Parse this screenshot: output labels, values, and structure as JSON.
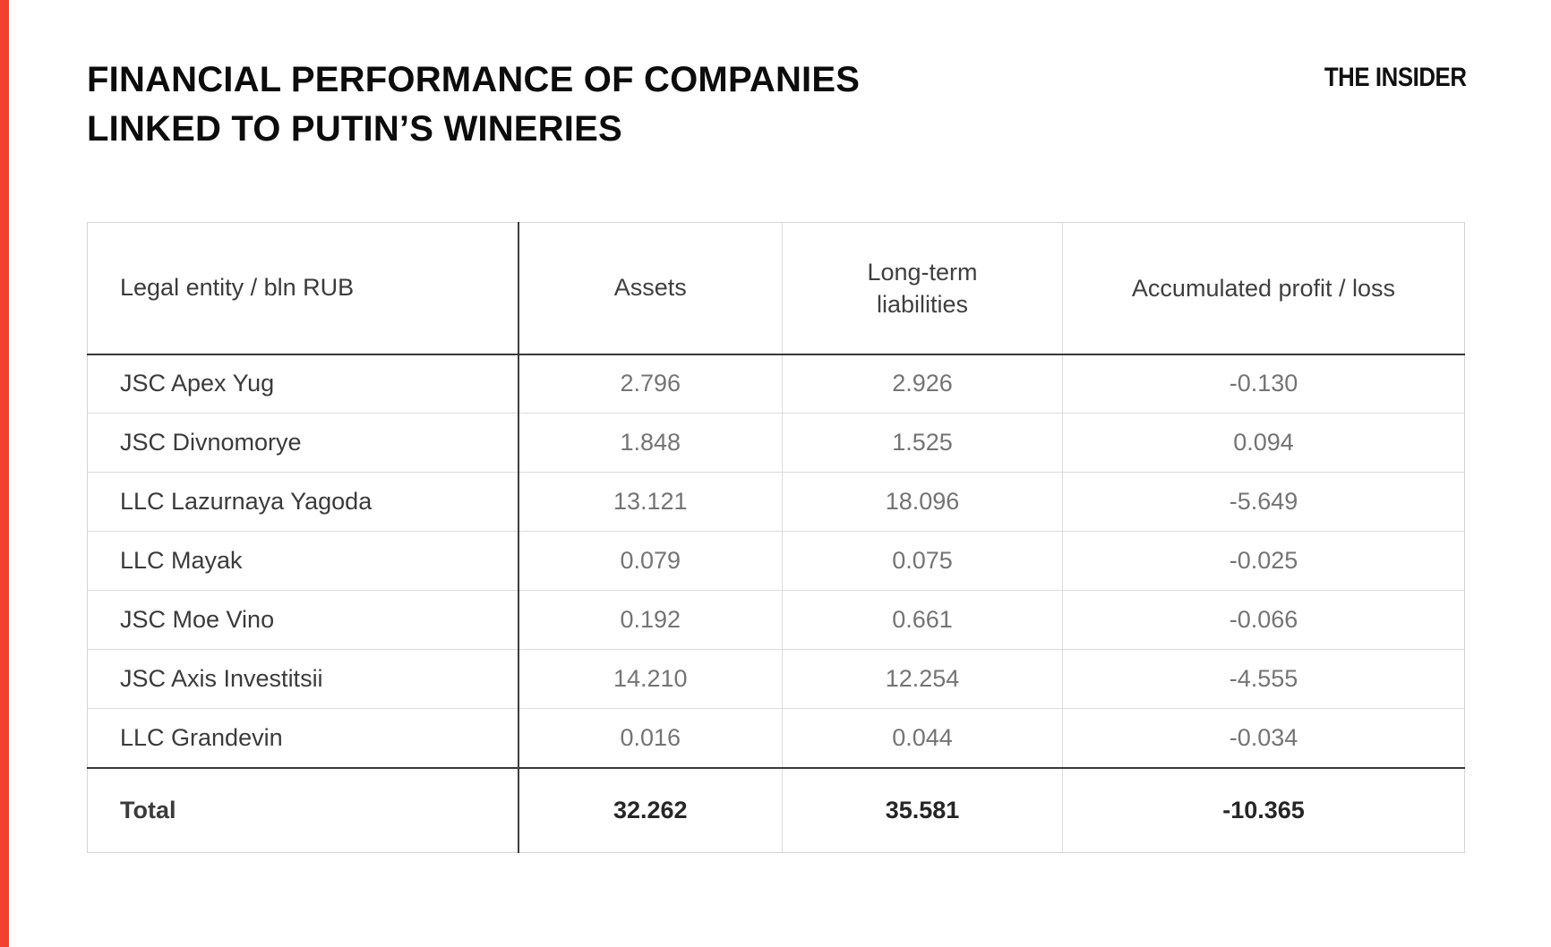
{
  "page": {
    "title_line1": "FINANCIAL PERFORMANCE OF COMPANIES",
    "title_line2": "LINKED TO PUTIN’S WINERIES",
    "logo": "THE INSIDER",
    "accent_color": "#f4402e"
  },
  "table": {
    "headers": {
      "entity": "Legal entity / bln RUB",
      "assets": "Assets",
      "liabilities": "Long-term liabilities",
      "profit": "Accumulated profit / loss"
    },
    "rows": [
      {
        "name": "JSC Apex Yug",
        "assets": "2.796",
        "liabilities": "2.926",
        "profit": "-0.130"
      },
      {
        "name": "JSC Divnomorye",
        "assets": "1.848",
        "liabilities": "1.525",
        "profit": "0.094"
      },
      {
        "name": "LLC Lazurnaya Yagoda",
        "assets": "13.121",
        "liabilities": "18.096",
        "profit": "-5.649"
      },
      {
        "name": "LLC Mayak",
        "assets": "0.079",
        "liabilities": "0.075",
        "profit": "-0.025"
      },
      {
        "name": "JSC Moe Vino",
        "assets": "0.192",
        "liabilities": "0.661",
        "profit": "-0.066"
      },
      {
        "name": "JSC Axis Investitsii",
        "assets": "14.210",
        "liabilities": "12.254",
        "profit": "-4.555"
      },
      {
        "name": "LLC Grandevin",
        "assets": "0.016",
        "liabilities": "0.044",
        "profit": "-0.034"
      }
    ],
    "total": {
      "name": "Total",
      "assets": "32.262",
      "liabilities": "35.581",
      "profit": "-10.365"
    }
  },
  "chart_data": {
    "type": "table",
    "title": "FINANCIAL PERFORMANCE OF COMPANIES LINKED TO PUTIN’S WINERIES",
    "unit": "bln RUB",
    "columns": [
      "Legal entity / bln RUB",
      "Assets",
      "Long-term liabilities",
      "Accumulated profit / loss"
    ],
    "rows": [
      [
        "JSC Apex Yug",
        2.796,
        2.926,
        -0.13
      ],
      [
        "JSC Divnomorye",
        1.848,
        1.525,
        0.094
      ],
      [
        "LLC Lazurnaya Yagoda",
        13.121,
        18.096,
        -5.649
      ],
      [
        "LLC Mayak",
        0.079,
        0.075,
        -0.025
      ],
      [
        "JSC Moe Vino",
        0.192,
        0.661,
        -0.066
      ],
      [
        "JSC Axis Investitsii",
        14.21,
        12.254,
        -4.555
      ],
      [
        "LLC Grandevin",
        0.016,
        0.044,
        -0.034
      ]
    ],
    "total_row": [
      "Total",
      32.262,
      35.581,
      -10.365
    ]
  }
}
